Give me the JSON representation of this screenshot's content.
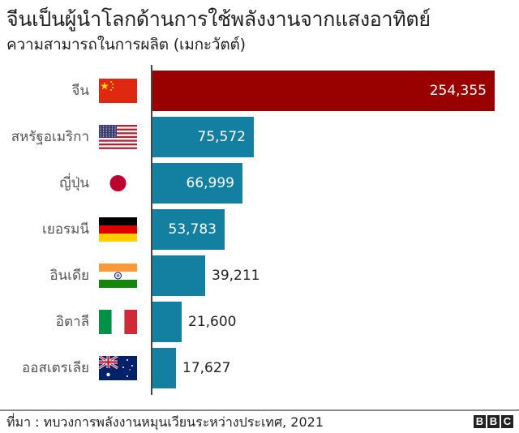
{
  "header": {
    "title": "จีนเป็นผู้นำโลกด้านการใช้พลังงานจากแสงอาทิตย์",
    "subtitle": "ความสามารถในการผลิต (เมกะวัตต์)"
  },
  "footer": {
    "source": "ที่มา : ทบวงการพลังงานหมุนเวียนระหว่างประเทศ, 2021",
    "logo": [
      "B",
      "B",
      "C"
    ]
  },
  "colors": {
    "highlight_bar": "#990000",
    "bar": "#1380a1",
    "axis": "#444444"
  },
  "chart_data": {
    "type": "bar",
    "orientation": "horizontal",
    "title": "จีนเป็นผู้นำโลกด้านการใช้พลังงานจากแสงอาทิตย์",
    "subtitle": "ความสามารถในการผลิต (เมกะวัตต์)",
    "xlabel": "",
    "ylabel": "",
    "source": "ที่มา : ทบวงการพลังงานหมุนเวียนระหว่างประเทศ, 2021",
    "categories": [
      "จีน",
      "สหรัฐอเมริกา",
      "ญี่ปุ่น",
      "เยอรมนี",
      "อินเดีย",
      "อิตาลี",
      "ออสเตรเลีย"
    ],
    "values": [
      254355,
      75572,
      66999,
      53783,
      39211,
      21600,
      17627
    ],
    "value_labels": [
      "254,355",
      "75,572",
      "66,999",
      "53,783",
      "39,211",
      "21,600",
      "17,627"
    ],
    "flags": [
      "china-flag",
      "usa-flag",
      "japan-flag",
      "germany-flag",
      "india-flag",
      "italy-flag",
      "australia-flag"
    ],
    "highlight": "จีน",
    "grid": false,
    "legend": "none",
    "xlim": [
      0,
      254355
    ]
  }
}
